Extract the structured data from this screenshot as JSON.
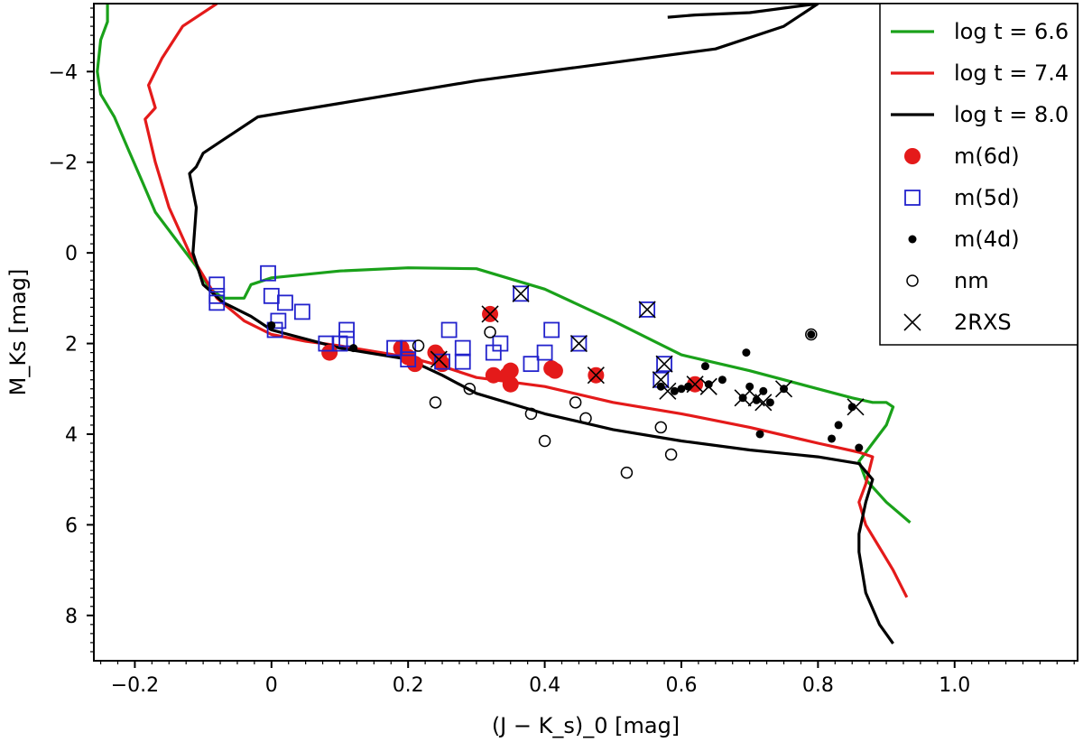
{
  "chart_data": {
    "type": "scatter",
    "title": "",
    "xlabel": "(J − K_s)_0 [mag]",
    "ylabel": "M_Ks [mag]",
    "xlim": [
      -0.26,
      1.18
    ],
    "ylim": [
      9.0,
      -5.5
    ],
    "y_inverted": true,
    "xticks": [
      -0.2,
      0.0,
      0.2,
      0.4,
      0.6,
      0.8,
      1.0
    ],
    "xtick_labels": [
      "−0.2",
      "0",
      "0.2",
      "0.4",
      "0.6",
      "0.8",
      "1.0"
    ],
    "yticks": [
      -4,
      -2,
      0,
      2,
      4,
      6,
      8
    ],
    "ytick_labels": [
      "−4",
      "−2",
      "0",
      "2",
      "4",
      "6",
      "8"
    ],
    "grid": false,
    "legend_position": "top-right",
    "legend": [
      {
        "label": "log t = 6.6",
        "kind": "line",
        "color": "#1aa11a"
      },
      {
        "label": "log t = 7.4",
        "kind": "line",
        "color": "#e41a1a"
      },
      {
        "label": "log t = 8.0",
        "kind": "line",
        "color": "#000000"
      },
      {
        "label": "m(6d)",
        "kind": "filled-circle",
        "color": "#e41a1a"
      },
      {
        "label": "m(5d)",
        "kind": "open-square",
        "color": "#2222cc"
      },
      {
        "label": "m(4d)",
        "kind": "small-dot",
        "color": "#000000"
      },
      {
        "label": "nm",
        "kind": "open-circle",
        "color": "#000000"
      },
      {
        "label": "2RXS",
        "kind": "cross",
        "color": "#000000"
      }
    ],
    "isochrones": [
      {
        "name": "log t = 6.6",
        "color": "#1aa11a",
        "points": [
          [
            -0.24,
            -5.5
          ],
          [
            -0.24,
            -5.1
          ],
          [
            -0.25,
            -4.7
          ],
          [
            -0.255,
            -4.0
          ],
          [
            -0.25,
            -3.5
          ],
          [
            -0.23,
            -3.0
          ],
          [
            -0.21,
            -2.3
          ],
          [
            -0.19,
            -1.6
          ],
          [
            -0.17,
            -0.9
          ],
          [
            -0.14,
            -0.3
          ],
          [
            -0.11,
            0.3
          ],
          [
            -0.09,
            0.8
          ],
          [
            -0.07,
            1.0
          ],
          [
            -0.04,
            1.0
          ],
          [
            -0.03,
            0.7
          ],
          [
            0.0,
            0.55
          ],
          [
            0.1,
            0.4
          ],
          [
            0.2,
            0.33
          ],
          [
            0.3,
            0.35
          ],
          [
            0.4,
            0.8
          ],
          [
            0.5,
            1.5
          ],
          [
            0.6,
            2.25
          ],
          [
            0.7,
            2.6
          ],
          [
            0.8,
            3.0
          ],
          [
            0.85,
            3.2
          ],
          [
            0.88,
            3.3
          ],
          [
            0.9,
            3.3
          ],
          [
            0.91,
            3.4
          ],
          [
            0.9,
            3.8
          ],
          [
            0.88,
            4.2
          ],
          [
            0.86,
            4.6
          ],
          [
            0.87,
            5.0
          ],
          [
            0.9,
            5.5
          ],
          [
            0.935,
            5.95
          ]
        ]
      },
      {
        "name": "log t = 7.4",
        "color": "#e41a1a",
        "points": [
          [
            -0.08,
            -5.5
          ],
          [
            -0.13,
            -5.0
          ],
          [
            -0.16,
            -4.3
          ],
          [
            -0.18,
            -3.7
          ],
          [
            -0.17,
            -3.2
          ],
          [
            -0.185,
            -2.95
          ],
          [
            -0.17,
            -2.0
          ],
          [
            -0.15,
            -1.0
          ],
          [
            -0.12,
            0.0
          ],
          [
            -0.08,
            1.0
          ],
          [
            -0.04,
            1.5
          ],
          [
            0.0,
            1.8
          ],
          [
            0.05,
            1.95
          ],
          [
            0.1,
            2.05
          ],
          [
            0.2,
            2.3
          ],
          [
            0.25,
            2.5
          ],
          [
            0.3,
            2.75
          ],
          [
            0.4,
            2.95
          ],
          [
            0.5,
            3.3
          ],
          [
            0.6,
            3.55
          ],
          [
            0.7,
            3.85
          ],
          [
            0.8,
            4.2
          ],
          [
            0.86,
            4.4
          ],
          [
            0.88,
            4.5
          ],
          [
            0.87,
            5.1
          ],
          [
            0.86,
            5.5
          ],
          [
            0.87,
            6.0
          ],
          [
            0.89,
            6.5
          ],
          [
            0.91,
            7.0
          ],
          [
            0.93,
            7.6
          ]
        ]
      },
      {
        "name": "log t = 8.0",
        "color": "#000000",
        "points": [
          [
            0.8,
            -5.5
          ],
          [
            0.75,
            -5.0
          ],
          [
            0.65,
            -4.5
          ],
          [
            0.5,
            -4.2
          ],
          [
            0.3,
            -3.8
          ],
          [
            0.1,
            -3.3
          ],
          [
            -0.02,
            -3.0
          ],
          [
            -0.07,
            -2.5
          ],
          [
            -0.1,
            -2.2
          ],
          [
            -0.11,
            -1.9
          ],
          [
            -0.12,
            -1.75
          ],
          [
            -0.11,
            -1.0
          ],
          [
            -0.115,
            0.0
          ],
          [
            -0.1,
            0.7
          ],
          [
            -0.07,
            1.1
          ],
          [
            -0.03,
            1.4
          ],
          [
            0.0,
            1.7
          ],
          [
            0.05,
            1.9
          ],
          [
            0.1,
            2.1
          ],
          [
            0.2,
            2.35
          ],
          [
            0.25,
            2.7
          ],
          [
            0.3,
            3.1
          ],
          [
            0.4,
            3.55
          ],
          [
            0.5,
            3.9
          ],
          [
            0.6,
            4.15
          ],
          [
            0.7,
            4.35
          ],
          [
            0.8,
            4.5
          ],
          [
            0.86,
            4.65
          ],
          [
            0.88,
            5.0
          ],
          [
            0.87,
            5.5
          ],
          [
            0.86,
            6.2
          ],
          [
            0.86,
            6.6
          ],
          [
            0.87,
            7.5
          ],
          [
            0.89,
            8.2
          ],
          [
            0.91,
            8.62
          ]
        ]
      },
      {
        "name": "log t = 8.0 (upper)",
        "color": "#000000",
        "points": [
          [
            0.58,
            -5.2
          ],
          [
            0.62,
            -5.25
          ],
          [
            0.7,
            -5.3
          ],
          [
            0.8,
            -5.5
          ]
        ]
      }
    ],
    "series": [
      {
        "name": "m(6d)",
        "kind": "filled-circle",
        "color": "#e41a1a",
        "points": [
          [
            0.085,
            2.2
          ],
          [
            0.19,
            2.1
          ],
          [
            0.2,
            2.3
          ],
          [
            0.21,
            2.45
          ],
          [
            0.24,
            2.2
          ],
          [
            0.245,
            2.3
          ],
          [
            0.25,
            2.45
          ],
          [
            0.32,
            1.35
          ],
          [
            0.325,
            2.7
          ],
          [
            0.345,
            2.7
          ],
          [
            0.35,
            2.6
          ],
          [
            0.35,
            2.9
          ],
          [
            0.41,
            2.55
          ],
          [
            0.415,
            2.6
          ],
          [
            0.475,
            2.7
          ],
          [
            0.62,
            2.9
          ]
        ]
      },
      {
        "name": "m(5d)",
        "kind": "open-square",
        "color": "#2222cc",
        "points": [
          [
            -0.08,
            0.7
          ],
          [
            -0.08,
            0.95
          ],
          [
            -0.08,
            1.1
          ],
          [
            -0.005,
            0.45
          ],
          [
            0.0,
            0.95
          ],
          [
            0.005,
            1.7
          ],
          [
            0.01,
            1.5
          ],
          [
            0.02,
            1.1
          ],
          [
            0.045,
            1.3
          ],
          [
            0.08,
            2.0
          ],
          [
            0.1,
            2.0
          ],
          [
            0.11,
            1.7
          ],
          [
            0.11,
            1.9
          ],
          [
            0.18,
            2.1
          ],
          [
            0.2,
            2.1
          ],
          [
            0.2,
            2.35
          ],
          [
            0.25,
            2.4
          ],
          [
            0.26,
            1.7
          ],
          [
            0.28,
            2.1
          ],
          [
            0.28,
            2.4
          ],
          [
            0.325,
            2.2
          ],
          [
            0.335,
            2.0
          ],
          [
            0.365,
            0.9
          ],
          [
            0.38,
            2.45
          ],
          [
            0.4,
            2.2
          ],
          [
            0.41,
            1.7
          ],
          [
            0.45,
            2.0
          ],
          [
            0.55,
            1.25
          ],
          [
            0.57,
            2.8
          ],
          [
            0.575,
            2.45
          ]
        ]
      },
      {
        "name": "m(4d)",
        "kind": "small-dot",
        "color": "#000000",
        "points": [
          [
            0.0,
            1.6
          ],
          [
            0.12,
            2.1
          ],
          [
            0.57,
            2.95
          ],
          [
            0.59,
            3.05
          ],
          [
            0.6,
            3.0
          ],
          [
            0.61,
            2.95
          ],
          [
            0.635,
            2.5
          ],
          [
            0.64,
            2.9
          ],
          [
            0.66,
            2.8
          ],
          [
            0.69,
            3.2
          ],
          [
            0.695,
            2.2
          ],
          [
            0.7,
            2.95
          ],
          [
            0.71,
            3.25
          ],
          [
            0.715,
            4.0
          ],
          [
            0.72,
            3.05
          ],
          [
            0.73,
            3.3
          ],
          [
            0.75,
            3.0
          ],
          [
            0.79,
            1.8
          ],
          [
            0.82,
            4.1
          ],
          [
            0.83,
            3.8
          ],
          [
            0.85,
            3.4
          ],
          [
            0.86,
            4.3
          ]
        ]
      },
      {
        "name": "nm",
        "kind": "open-circle",
        "color": "#000000",
        "points": [
          [
            0.215,
            2.05
          ],
          [
            0.24,
            3.3
          ],
          [
            0.29,
            3.0
          ],
          [
            0.32,
            1.75
          ],
          [
            0.38,
            3.55
          ],
          [
            0.4,
            4.15
          ],
          [
            0.445,
            3.3
          ],
          [
            0.46,
            3.65
          ],
          [
            0.52,
            4.85
          ],
          [
            0.57,
            3.85
          ],
          [
            0.585,
            4.45
          ],
          [
            0.79,
            1.8
          ]
        ]
      },
      {
        "name": "2RXS",
        "kind": "cross",
        "color": "#000000",
        "points": [
          [
            0.245,
            2.35
          ],
          [
            0.32,
            1.35
          ],
          [
            0.365,
            0.9
          ],
          [
            0.45,
            2.0
          ],
          [
            0.475,
            2.7
          ],
          [
            0.55,
            1.25
          ],
          [
            0.57,
            2.8
          ],
          [
            0.575,
            2.45
          ],
          [
            0.58,
            3.05
          ],
          [
            0.62,
            2.9
          ],
          [
            0.64,
            2.95
          ],
          [
            0.69,
            3.2
          ],
          [
            0.71,
            3.2
          ],
          [
            0.72,
            3.3
          ],
          [
            0.75,
            3.0
          ],
          [
            0.855,
            3.4
          ]
        ]
      }
    ]
  }
}
